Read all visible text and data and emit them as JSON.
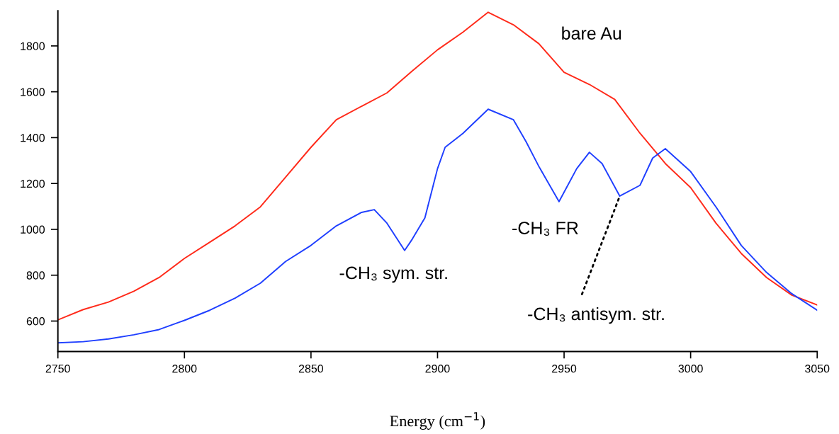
{
  "chart_data": {
    "type": "line",
    "xlabel": "Energy (cm$^{−1}$)",
    "xlim": [
      2750,
      3050
    ],
    "ylim": [
      467,
      1953
    ],
    "xticks": [
      2750,
      2800,
      2850,
      2900,
      2950,
      3000,
      3050
    ],
    "yticks": [
      600,
      800,
      1000,
      1200,
      1400,
      1600,
      1800
    ],
    "grid": false,
    "legend": false,
    "marker": "none",
    "line_style": "solid",
    "series": [
      {
        "name": "bare Au",
        "color": "#ff2a1a",
        "x": [
          2750,
          2760,
          2770,
          2780,
          2790,
          2800,
          2810,
          2820,
          2830,
          2840,
          2850,
          2860,
          2870,
          2880,
          2890,
          2900,
          2910,
          2920,
          2930,
          2940,
          2950,
          2960,
          2970,
          2980,
          2990,
          3000,
          3010,
          3020,
          3030,
          3040,
          3050
        ],
        "values": [
          605,
          650,
          683,
          730,
          790,
          873,
          944,
          1015,
          1098,
          1228,
          1358,
          1478,
          1537,
          1595,
          1691,
          1783,
          1860,
          1947,
          1892,
          1810,
          1685,
          1632,
          1567,
          1419,
          1287,
          1182,
          1027,
          895,
          790,
          713,
          670
        ]
      },
      {
        "color": "#1f3fff",
        "x": [
          2750,
          2760,
          2770,
          2780,
          2790,
          2800,
          2810,
          2820,
          2830,
          2840,
          2850,
          2860,
          2870,
          2875,
          2880,
          2887,
          2890,
          2895,
          2900,
          2903,
          2910,
          2920,
          2930,
          2935,
          2940,
          2948,
          2955,
          2960,
          2965,
          2972,
          2980,
          2985,
          2990,
          3000,
          3010,
          3020,
          3030,
          3040,
          3050
        ],
        "values": [
          505,
          510,
          522,
          540,
          563,
          603,
          647,
          700,
          765,
          860,
          930,
          1015,
          1074,
          1086,
          1027,
          908,
          957,
          1050,
          1265,
          1358,
          1418,
          1524,
          1478,
          1382,
          1275,
          1121,
          1265,
          1336,
          1287,
          1145,
          1192,
          1311,
          1352,
          1252,
          1098,
          930,
          812,
          719,
          647
        ]
      }
    ],
    "annotations": [
      {
        "text": "-CH₃ sym. str.",
        "x": 2887,
        "y": 908
      },
      {
        "text": "-CH₃ FR",
        "x": 2948,
        "y": 1121
      },
      {
        "text": "-CH₃ antisym. str.",
        "x": 2972,
        "y": 1145
      }
    ]
  }
}
